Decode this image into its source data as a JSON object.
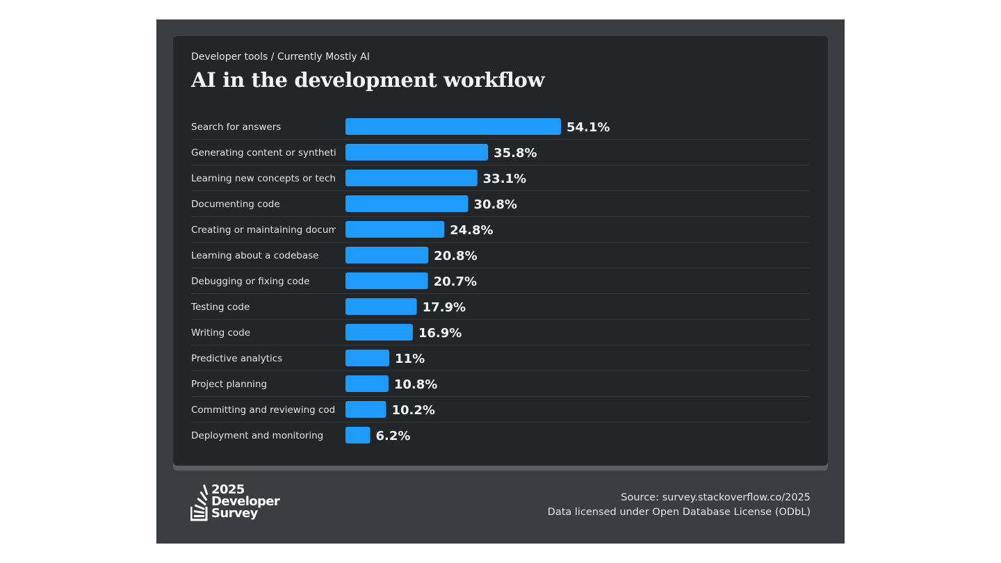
{
  "header": {
    "breadcrumb": "Developer tools / Currently Mostly AI",
    "title": "AI in the development workflow"
  },
  "footer": {
    "logo_line1": "2025",
    "logo_line2": "Developer",
    "logo_line3": "Survey",
    "source": "Source: survey.stackoverflow.co/2025",
    "license": "Data licensed under Open Database License (ODbL)"
  },
  "colors": {
    "bar": "#1f9bff",
    "card_background": "#232629",
    "frame_background": "#3a3d42"
  },
  "chart_data": {
    "type": "bar",
    "orientation": "horizontal",
    "title": "AI in the development workflow",
    "categories": [
      "Search for answers",
      "Generating content or synthetic data",
      "Learning new concepts or technologies",
      "Documenting code",
      "Creating or maintaining documentation",
      "Learning about a codebase",
      "Debugging or fixing code",
      "Testing code",
      "Writing code",
      "Predictive analytics",
      "Project planning",
      "Committing and reviewing code",
      "Deployment and monitoring"
    ],
    "values": [
      54.1,
      35.8,
      33.1,
      30.8,
      24.8,
      20.8,
      20.7,
      17.9,
      16.9,
      11,
      10.8,
      10.2,
      6.2
    ],
    "value_labels": [
      "54.1%",
      "35.8%",
      "33.1%",
      "30.8%",
      "24.8%",
      "20.8%",
      "20.7%",
      "17.9%",
      "16.9%",
      "11%",
      "10.8%",
      "10.2%",
      "6.2%"
    ],
    "xlim": [
      0,
      100
    ],
    "grid": false,
    "legend": "none"
  }
}
